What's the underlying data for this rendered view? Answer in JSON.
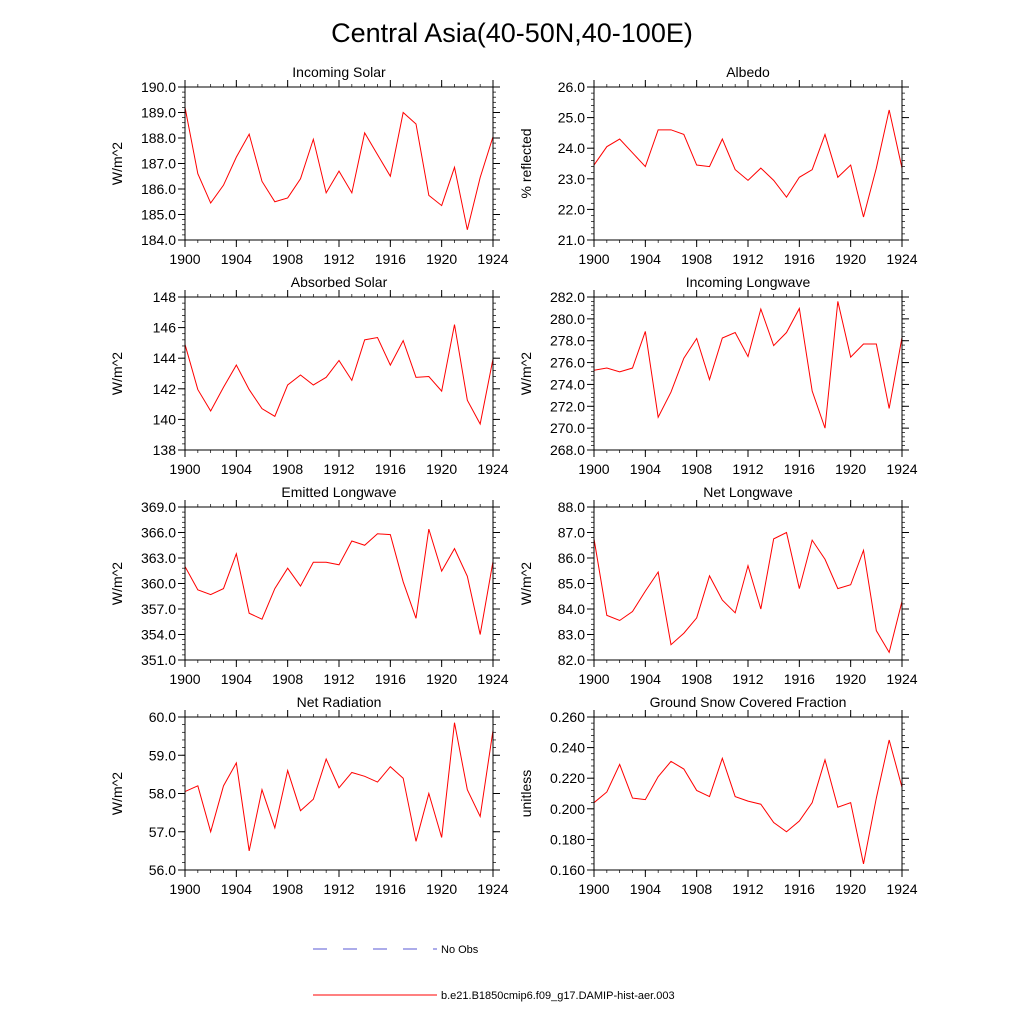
{
  "title": "Central Asia(40-50N,40-100E)",
  "colors": {
    "model_line": "#ff0000",
    "obs_line": "#5a5ad6",
    "axis": "#000000"
  },
  "legend": {
    "obs_label": "No Obs",
    "model_label": "b.e21.B1850cmip6.f09_g17.DAMIP-hist-aer.003"
  },
  "chart_data": [
    {
      "type": "line",
      "title": "Incoming Solar",
      "ylabel": "W/m^2",
      "xlim": [
        1900,
        1924
      ],
      "ylim": [
        184.0,
        190.0
      ],
      "yticks": [
        "184.0",
        "185.0",
        "186.0",
        "187.0",
        "188.0",
        "189.0",
        "190.0"
      ],
      "xticks": [
        "1900",
        "1904",
        "1908",
        "1912",
        "1916",
        "1920",
        "1924"
      ],
      "series": [
        {
          "name": "b.e21.B1850cmip6.f09_g17.DAMIP-hist-aer.003",
          "x": [
            1900,
            1901,
            1902,
            1903,
            1904,
            1905,
            1906,
            1907,
            1908,
            1909,
            1910,
            1911,
            1912,
            1913,
            1914,
            1915,
            1916,
            1917,
            1918,
            1919,
            1920,
            1921,
            1922,
            1923,
            1924
          ],
          "y": [
            189.2,
            186.6,
            185.45,
            186.15,
            187.25,
            188.15,
            186.3,
            185.5,
            185.65,
            186.4,
            187.95,
            185.85,
            186.7,
            185.85,
            188.2,
            187.35,
            186.5,
            189.0,
            188.55,
            185.75,
            185.35,
            186.85,
            184.4,
            186.45,
            188.05
          ]
        }
      ]
    },
    {
      "type": "line",
      "title": "Albedo",
      "ylabel": "% reflected",
      "xlim": [
        1900,
        1924
      ],
      "ylim": [
        21.0,
        26.0
      ],
      "yticks": [
        "21.0",
        "22.0",
        "23.0",
        "24.0",
        "25.0",
        "26.0"
      ],
      "xticks": [
        "1900",
        "1904",
        "1908",
        "1912",
        "1916",
        "1920",
        "1924"
      ],
      "series": [
        {
          "name": "b.e21.B1850cmip6.f09_g17.DAMIP-hist-aer.003",
          "x": [
            1900,
            1901,
            1902,
            1903,
            1904,
            1905,
            1906,
            1907,
            1908,
            1909,
            1910,
            1911,
            1912,
            1913,
            1914,
            1915,
            1916,
            1917,
            1918,
            1919,
            1920,
            1921,
            1922,
            1923,
            1924
          ],
          "y": [
            23.45,
            24.05,
            24.3,
            23.85,
            23.4,
            24.6,
            24.6,
            24.45,
            23.45,
            23.4,
            24.3,
            23.3,
            22.95,
            23.35,
            22.95,
            22.4,
            23.05,
            23.3,
            24.45,
            23.05,
            23.45,
            21.75,
            23.35,
            25.25,
            23.35
          ]
        }
      ]
    },
    {
      "type": "line",
      "title": "Absorbed Solar",
      "ylabel": "W/m^2",
      "xlim": [
        1900,
        1924
      ],
      "ylim": [
        138,
        148
      ],
      "yticks": [
        "138",
        "140",
        "142",
        "144",
        "146",
        "148"
      ],
      "xticks": [
        "1900",
        "1904",
        "1908",
        "1912",
        "1916",
        "1920",
        "1924"
      ],
      "series": [
        {
          "name": "b.e21.B1850cmip6.f09_g17.DAMIP-hist-aer.003",
          "x": [
            1900,
            1901,
            1902,
            1903,
            1904,
            1905,
            1906,
            1907,
            1908,
            1909,
            1910,
            1911,
            1912,
            1913,
            1914,
            1915,
            1916,
            1917,
            1918,
            1919,
            1920,
            1921,
            1922,
            1923,
            1924
          ],
          "y": [
            144.9,
            141.95,
            140.55,
            142.1,
            143.55,
            141.95,
            140.7,
            140.2,
            142.25,
            142.9,
            142.25,
            142.75,
            143.85,
            142.55,
            145.2,
            145.35,
            143.55,
            145.15,
            142.75,
            142.8,
            141.85,
            146.2,
            141.25,
            139.7,
            143.95
          ]
        }
      ]
    },
    {
      "type": "line",
      "title": "Incoming Longwave",
      "ylabel": "W/m^2",
      "xlim": [
        1900,
        1924
      ],
      "ylim": [
        268.0,
        282.0
      ],
      "yticks": [
        "268.0",
        "270.0",
        "272.0",
        "274.0",
        "276.0",
        "278.0",
        "280.0",
        "282.0"
      ],
      "xticks": [
        "1900",
        "1904",
        "1908",
        "1912",
        "1916",
        "1920",
        "1924"
      ],
      "series": [
        {
          "name": "b.e21.B1850cmip6.f09_g17.DAMIP-hist-aer.003",
          "x": [
            1900,
            1901,
            1902,
            1903,
            1904,
            1905,
            1906,
            1907,
            1908,
            1909,
            1910,
            1911,
            1912,
            1913,
            1914,
            1915,
            1916,
            1917,
            1918,
            1919,
            1920,
            1921,
            1922,
            1923,
            1924
          ],
          "y": [
            275.3,
            275.5,
            275.15,
            275.5,
            278.85,
            271.0,
            273.3,
            276.4,
            278.2,
            274.45,
            278.25,
            278.75,
            276.55,
            280.9,
            277.55,
            278.75,
            280.95,
            273.4,
            270.0,
            281.6,
            276.5,
            277.7,
            277.7,
            271.8,
            278.3
          ]
        }
      ]
    },
    {
      "type": "line",
      "title": "Emitted Longwave",
      "ylabel": "W/m^2",
      "xlim": [
        1900,
        1924
      ],
      "ylim": [
        351.0,
        369.0
      ],
      "yticks": [
        "351.0",
        "354.0",
        "357.0",
        "360.0",
        "363.0",
        "366.0",
        "369.0"
      ],
      "xticks": [
        "1900",
        "1904",
        "1908",
        "1912",
        "1916",
        "1920",
        "1924"
      ],
      "series": [
        {
          "name": "b.e21.B1850cmip6.f09_g17.DAMIP-hist-aer.003",
          "x": [
            1900,
            1901,
            1902,
            1903,
            1904,
            1905,
            1906,
            1907,
            1908,
            1909,
            1910,
            1911,
            1912,
            1913,
            1914,
            1915,
            1916,
            1917,
            1918,
            1919,
            1920,
            1921,
            1922,
            1923,
            1924
          ],
          "y": [
            362.0,
            359.25,
            358.7,
            359.4,
            363.5,
            356.5,
            355.8,
            359.4,
            361.8,
            359.7,
            362.5,
            362.5,
            362.2,
            365.0,
            364.5,
            365.85,
            365.75,
            360.2,
            355.9,
            366.4,
            361.45,
            364.1,
            360.85,
            354.0,
            362.6
          ]
        }
      ]
    },
    {
      "type": "line",
      "title": "Net Longwave",
      "ylabel": "W/m^2",
      "xlim": [
        1900,
        1924
      ],
      "ylim": [
        82.0,
        88.0
      ],
      "yticks": [
        "82.0",
        "83.0",
        "84.0",
        "85.0",
        "86.0",
        "87.0",
        "88.0"
      ],
      "xticks": [
        "1900",
        "1904",
        "1908",
        "1912",
        "1916",
        "1920",
        "1924"
      ],
      "series": [
        {
          "name": "b.e21.B1850cmip6.f09_g17.DAMIP-hist-aer.003",
          "x": [
            1900,
            1901,
            1902,
            1903,
            1904,
            1905,
            1906,
            1907,
            1908,
            1909,
            1910,
            1911,
            1912,
            1913,
            1914,
            1915,
            1916,
            1917,
            1918,
            1919,
            1920,
            1921,
            1922,
            1923,
            1924
          ],
          "y": [
            86.75,
            83.75,
            83.55,
            83.9,
            84.7,
            85.45,
            82.6,
            83.05,
            83.65,
            85.3,
            84.35,
            83.85,
            85.7,
            84.0,
            86.75,
            87.0,
            84.8,
            86.7,
            85.95,
            84.8,
            84.95,
            86.3,
            83.15,
            82.3,
            84.3
          ]
        }
      ]
    },
    {
      "type": "line",
      "title": "Net Radiation",
      "ylabel": "W/m^2",
      "xlim": [
        1900,
        1924
      ],
      "ylim": [
        56.0,
        60.0
      ],
      "yticks": [
        "56.0",
        "57.0",
        "58.0",
        "59.0",
        "60.0"
      ],
      "xticks": [
        "1900",
        "1904",
        "1908",
        "1912",
        "1916",
        "1920",
        "1924"
      ],
      "series": [
        {
          "name": "b.e21.B1850cmip6.f09_g17.DAMIP-hist-aer.003",
          "x": [
            1900,
            1901,
            1902,
            1903,
            1904,
            1905,
            1906,
            1907,
            1908,
            1909,
            1910,
            1911,
            1912,
            1913,
            1914,
            1915,
            1916,
            1917,
            1918,
            1919,
            1920,
            1921,
            1922,
            1923,
            1924
          ],
          "y": [
            58.05,
            58.2,
            57.0,
            58.2,
            58.8,
            56.5,
            58.1,
            57.1,
            58.6,
            57.55,
            57.85,
            58.9,
            58.15,
            58.55,
            58.45,
            58.3,
            58.7,
            58.4,
            56.75,
            58.0,
            56.85,
            59.85,
            58.1,
            57.4,
            59.65
          ]
        }
      ]
    },
    {
      "type": "line",
      "title": "Ground Snow Covered Fraction",
      "ylabel": "unitless",
      "xlim": [
        1900,
        1924
      ],
      "ylim": [
        0.16,
        0.26
      ],
      "yticks": [
        "0.160",
        "0.180",
        "0.200",
        "0.220",
        "0.240",
        "0.260"
      ],
      "xticks": [
        "1900",
        "1904",
        "1908",
        "1912",
        "1916",
        "1920",
        "1924"
      ],
      "series": [
        {
          "name": "b.e21.B1850cmip6.f09_g17.DAMIP-hist-aer.003",
          "x": [
            1900,
            1901,
            1902,
            1903,
            1904,
            1905,
            1906,
            1907,
            1908,
            1909,
            1910,
            1911,
            1912,
            1913,
            1914,
            1915,
            1916,
            1917,
            1918,
            1919,
            1920,
            1921,
            1922,
            1923,
            1924
          ],
          "y": [
            0.204,
            0.211,
            0.229,
            0.207,
            0.206,
            0.221,
            0.231,
            0.226,
            0.212,
            0.208,
            0.233,
            0.208,
            0.205,
            0.203,
            0.191,
            0.185,
            0.192,
            0.204,
            0.232,
            0.201,
            0.204,
            0.164,
            0.207,
            0.245,
            0.214
          ]
        }
      ]
    }
  ]
}
